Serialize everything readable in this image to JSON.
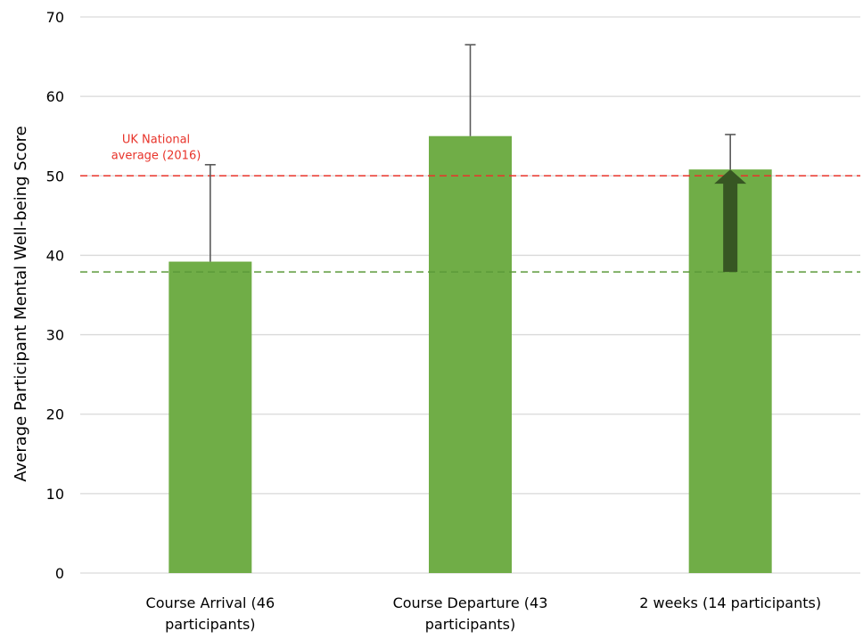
{
  "chart_data": {
    "type": "bar",
    "title": "",
    "xlabel": "",
    "ylabel": "Average Participant Mental Well-being Score",
    "ylim": [
      0,
      70
    ],
    "yticks": [
      0,
      10,
      20,
      30,
      40,
      50,
      60,
      70
    ],
    "grid": true,
    "categories": [
      [
        "Course Arrival (46",
        "participants)"
      ],
      [
        "Course Departure (43",
        "participants)"
      ],
      [
        "2 weeks (14 participants)"
      ]
    ],
    "values": [
      39.2,
      55.0,
      50.8
    ],
    "error_upper": [
      51.4,
      66.5,
      55.2
    ],
    "reference_lines": [
      {
        "value": 50,
        "style": "dashed",
        "color": "#e8332a",
        "label": [
          "UK National",
          "average (2016)"
        ]
      },
      {
        "value": 37.9,
        "style": "dashed",
        "color": "#5c9a3a"
      }
    ],
    "improvement_arrow": {
      "category_index": 2,
      "from": 37.9,
      "to": 50.8,
      "color": "#375623"
    },
    "colors": {
      "bar": "#70ad47",
      "grid": "#d9d9d9",
      "error_bar": "#595959"
    }
  }
}
